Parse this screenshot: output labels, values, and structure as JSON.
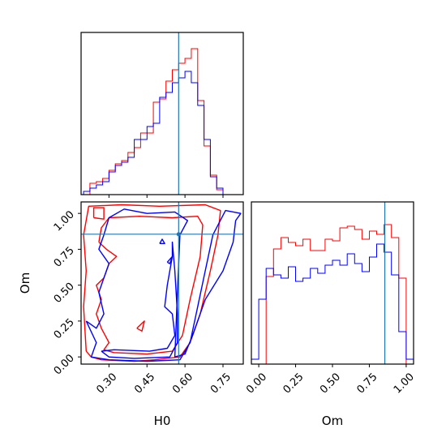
{
  "colors": {
    "red": "#ff0000",
    "blue": "#0000ff",
    "truth": "#1f77b4",
    "frame": "#000000"
  },
  "chart_data": [
    {
      "type": "histogram-step",
      "panel": "H0 marginal",
      "x_range": [
        0.19,
        0.83
      ],
      "y_range": [
        0,
        1
      ],
      "truth_x": 0.575,
      "bin_edges": [
        0.2,
        0.225,
        0.25,
        0.275,
        0.3,
        0.325,
        0.35,
        0.375,
        0.4,
        0.425,
        0.45,
        0.475,
        0.5,
        0.525,
        0.55,
        0.575,
        0.6,
        0.625,
        0.65,
        0.675,
        0.7,
        0.725,
        0.75,
        0.775,
        0.8
      ],
      "series": [
        {
          "color": "red",
          "values": [
            0.0,
            0.07,
            0.08,
            0.1,
            0.15,
            0.19,
            0.21,
            0.26,
            0.29,
            0.38,
            0.38,
            0.57,
            0.59,
            0.7,
            0.77,
            0.81,
            0.84,
            0.9,
            0.58,
            0.3,
            0.12,
            0.03,
            0.0,
            0.0
          ]
        },
        {
          "color": "blue",
          "values": [
            0.02,
            0.04,
            0.06,
            0.08,
            0.14,
            0.18,
            0.2,
            0.23,
            0.34,
            0.34,
            0.42,
            0.44,
            0.6,
            0.63,
            0.69,
            0.72,
            0.76,
            0.69,
            0.55,
            0.34,
            0.11,
            0.04,
            0.0,
            0.0
          ]
        }
      ]
    },
    {
      "type": "contour",
      "panel": "H0 vs Om",
      "xlabel": "H0",
      "ylabel": "Om",
      "x_range": [
        0.19,
        0.83
      ],
      "y_range": [
        -0.05,
        1.08
      ],
      "x_ticks": [
        "0.30",
        "0.45",
        "0.60",
        "0.75"
      ],
      "y_ticks": [
        "0.00",
        "0.25",
        "0.50",
        "0.75",
        "1.00"
      ],
      "truth_x": 0.575,
      "truth_y": 0.855,
      "contours": [
        {
          "color": "red",
          "points": [
            [
              0.21,
              0.04
            ],
            [
              0.23,
              0.0
            ],
            [
              0.27,
              -0.02
            ],
            [
              0.4,
              -0.03
            ],
            [
              0.48,
              -0.02
            ],
            [
              0.58,
              0.0
            ],
            [
              0.62,
              0.1
            ],
            [
              0.66,
              0.3
            ],
            [
              0.7,
              0.6
            ],
            [
              0.73,
              0.85
            ],
            [
              0.74,
              1.02
            ],
            [
              0.68,
              1.06
            ],
            [
              0.5,
              1.05
            ],
            [
              0.35,
              1.06
            ],
            [
              0.22,
              1.05
            ],
            [
              0.2,
              0.85
            ],
            [
              0.21,
              0.6
            ],
            [
              0.2,
              0.35
            ],
            [
              0.21,
              0.04
            ]
          ]
        },
        {
          "color": "red",
          "points": [
            [
              0.26,
              0.8
            ],
            [
              0.29,
              0.75
            ],
            [
              0.33,
              0.7
            ],
            [
              0.3,
              0.65
            ],
            [
              0.28,
              0.55
            ],
            [
              0.25,
              0.5
            ],
            [
              0.27,
              0.4
            ],
            [
              0.25,
              0.3
            ],
            [
              0.27,
              0.2
            ],
            [
              0.3,
              0.1
            ],
            [
              0.28,
              0.05
            ],
            [
              0.32,
              0.03
            ],
            [
              0.45,
              0.02
            ],
            [
              0.55,
              0.04
            ],
            [
              0.59,
              0.15
            ],
            [
              0.62,
              0.4
            ],
            [
              0.66,
              0.7
            ],
            [
              0.67,
              0.92
            ],
            [
              0.65,
              0.98
            ],
            [
              0.55,
              0.97
            ],
            [
              0.42,
              0.98
            ],
            [
              0.3,
              0.97
            ],
            [
              0.27,
              0.9
            ],
            [
              0.26,
              0.8
            ]
          ]
        },
        {
          "color": "red",
          "points": [
            [
              0.41,
              0.2
            ],
            [
              0.44,
              0.25
            ],
            [
              0.43,
              0.18
            ],
            [
              0.41,
              0.2
            ]
          ]
        },
        {
          "color": "red",
          "points": [
            [
              0.24,
              0.97
            ],
            [
              0.28,
              0.96
            ],
            [
              0.28,
              1.04
            ],
            [
              0.24,
              1.04
            ],
            [
              0.24,
              0.97
            ]
          ]
        },
        {
          "color": "blue",
          "points": [
            [
              0.21,
              0.25
            ],
            [
              0.25,
              0.1
            ],
            [
              0.23,
              0.0
            ],
            [
              0.3,
              -0.02
            ],
            [
              0.45,
              -0.03
            ],
            [
              0.58,
              -0.02
            ],
            [
              0.62,
              0.1
            ],
            [
              0.65,
              0.35
            ],
            [
              0.68,
              0.6
            ],
            [
              0.71,
              0.85
            ],
            [
              0.76,
              1.02
            ],
            [
              0.82,
              1.0
            ],
            [
              0.8,
              0.95
            ],
            [
              0.79,
              0.8
            ],
            [
              0.75,
              0.6
            ],
            [
              0.68,
              0.4
            ],
            [
              0.63,
              0.15
            ],
            [
              0.6,
              0.02
            ],
            [
              0.56,
              0.0
            ],
            [
              0.57,
              0.45
            ],
            [
              0.58,
              0.85
            ],
            [
              0.61,
              0.95
            ],
            [
              0.56,
              1.01
            ],
            [
              0.45,
              1.0
            ],
            [
              0.36,
              1.03
            ],
            [
              0.3,
              0.97
            ],
            [
              0.28,
              0.85
            ],
            [
              0.26,
              0.75
            ],
            [
              0.3,
              0.65
            ],
            [
              0.28,
              0.55
            ],
            [
              0.26,
              0.45
            ],
            [
              0.28,
              0.3
            ],
            [
              0.25,
              0.2
            ],
            [
              0.21,
              0.25
            ]
          ]
        },
        {
          "color": "blue",
          "points": [
            [
              0.27,
              0.04
            ],
            [
              0.32,
              0.05
            ],
            [
              0.46,
              0.04
            ],
            [
              0.53,
              0.06
            ],
            [
              0.56,
              0.15
            ],
            [
              0.55,
              0.3
            ],
            [
              0.52,
              0.35
            ],
            [
              0.53,
              0.5
            ],
            [
              0.55,
              0.7
            ],
            [
              0.55,
              0.8
            ],
            [
              0.56,
              0.6
            ],
            [
              0.57,
              0.3
            ],
            [
              0.57,
              0.1
            ],
            [
              0.54,
              0.0
            ],
            [
              0.4,
              -0.01
            ],
            [
              0.3,
              0.0
            ],
            [
              0.27,
              0.04
            ]
          ]
        },
        {
          "color": "blue",
          "points": [
            [
              0.5,
              0.79
            ],
            [
              0.51,
              0.82
            ],
            [
              0.52,
              0.79
            ],
            [
              0.5,
              0.79
            ]
          ]
        },
        {
          "color": "blue",
          "points": [
            [
              0.53,
              0.66
            ],
            [
              0.55,
              0.7
            ],
            [
              0.54,
              0.65
            ],
            [
              0.53,
              0.66
            ]
          ]
        }
      ]
    },
    {
      "type": "histogram-step",
      "panel": "Om marginal",
      "xlabel": "Om",
      "x_range": [
        -0.05,
        1.05
      ],
      "y_range": [
        0,
        1
      ],
      "x_ticks": [
        "0.00",
        "0.25",
        "0.50",
        "0.75",
        "1.00"
      ],
      "truth_x": 0.855,
      "bin_edges": [
        -0.05,
        0.0,
        0.05,
        0.1,
        0.15,
        0.2,
        0.25,
        0.3,
        0.35,
        0.4,
        0.45,
        0.5,
        0.55,
        0.6,
        0.65,
        0.7,
        0.75,
        0.8,
        0.85,
        0.9,
        0.95,
        1.0,
        1.05
      ],
      "series": [
        {
          "color": "red",
          "values": [
            0.0,
            0.0,
            0.54,
            0.71,
            0.78,
            0.75,
            0.73,
            0.77,
            0.7,
            0.7,
            0.77,
            0.76,
            0.84,
            0.85,
            0.83,
            0.77,
            0.82,
            0.8,
            0.86,
            0.78,
            0.53,
            0.0
          ]
        },
        {
          "color": "blue",
          "values": [
            0.03,
            0.4,
            0.59,
            0.55,
            0.53,
            0.6,
            0.51,
            0.53,
            0.59,
            0.56,
            0.61,
            0.64,
            0.61,
            0.68,
            0.62,
            0.57,
            0.66,
            0.74,
            0.69,
            0.55,
            0.2,
            0.03
          ]
        }
      ]
    }
  ]
}
